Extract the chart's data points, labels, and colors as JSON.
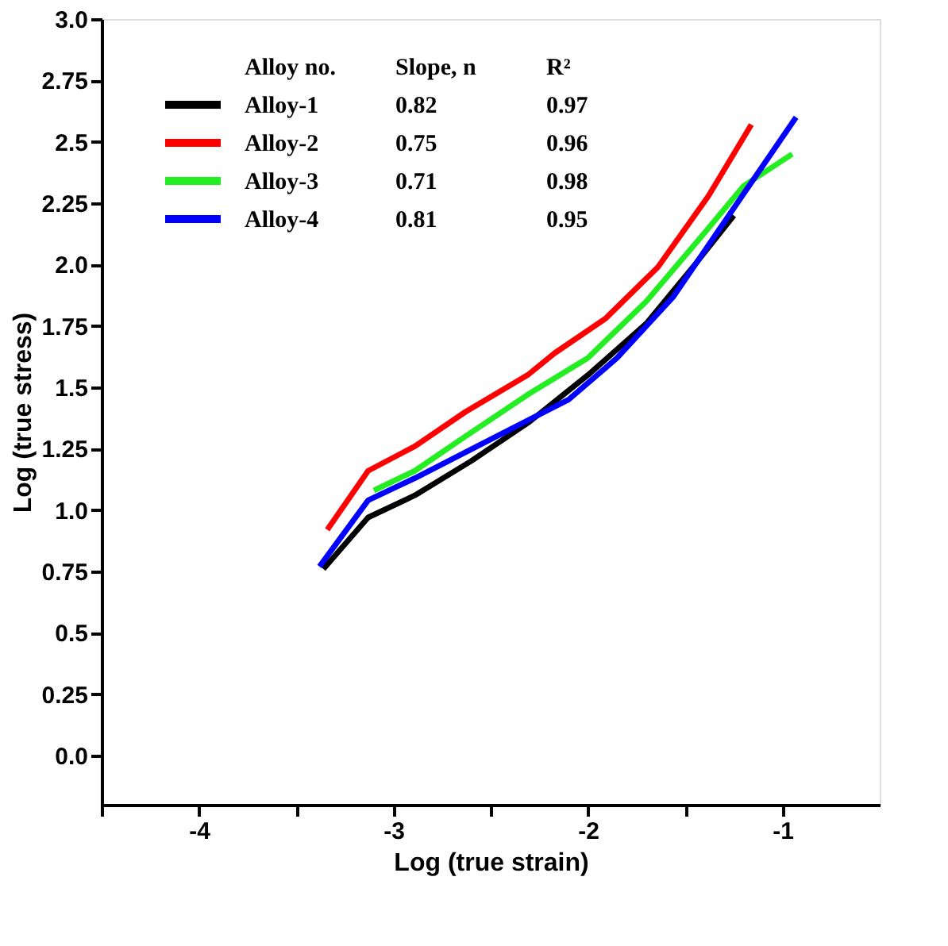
{
  "chart_data": {
    "type": "line",
    "xlabel": "Log (true strain)",
    "ylabel": "Log (true stress)",
    "legend_title": "Alloy no.",
    "xlim": [
      -4.5,
      -0.5
    ],
    "ylim": [
      -0.2,
      3.0
    ],
    "xticks": [
      {
        "value": -4.5,
        "label": null
      },
      -4,
      {
        "value": -3.5,
        "label": null
      },
      -3,
      {
        "value": -2.5,
        "label": null
      },
      -2,
      {
        "value": -1.5,
        "label": null
      },
      -1
    ],
    "yticks": [
      "0.0",
      0.25,
      "0.5",
      0.75,
      "1.0",
      1.25,
      "1.5",
      1.75,
      "2.0",
      2.25,
      "2.5",
      2.75,
      "3.0"
    ],
    "legend": "top left",
    "grid": false,
    "marker": "none",
    "line_style": "solid",
    "annotations": [
      "Slope, n",
      "0.82",
      "0.75",
      "0.71",
      "0.81",
      "R²",
      "0.97",
      "0.96",
      "0.98",
      "0.95"
    ],
    "series": [
      {
        "name": "Alloy-1",
        "color": "#000000",
        "x": [
          -3.36,
          -3.13,
          -2.89,
          -2.6,
          -2.3,
          -2.0,
          -1.7,
          -1.45,
          -1.25
        ],
        "values": [
          0.76,
          0.97,
          1.06,
          1.2,
          1.36,
          1.55,
          1.76,
          2.0,
          2.2
        ]
      },
      {
        "name": "Alloy-2",
        "color": "#ff0000",
        "x": [
          -3.34,
          -3.13,
          -2.89,
          -2.63,
          -2.31,
          -2.17,
          -1.91,
          -1.64,
          -1.38,
          -1.16
        ],
        "values": [
          0.92,
          1.16,
          1.26,
          1.4,
          1.55,
          1.64,
          1.78,
          1.99,
          2.28,
          2.57
        ]
      },
      {
        "name": "Alloy-3",
        "color": "#22ee22",
        "x": [
          -3.1,
          -2.89,
          -2.63,
          -2.31,
          -2.0,
          -1.7,
          -1.4,
          -1.2,
          -0.95
        ],
        "values": [
          1.08,
          1.16,
          1.3,
          1.47,
          1.62,
          1.85,
          2.13,
          2.32,
          2.45
        ]
      },
      {
        "name": "Alloy-4",
        "color": "#0000ff",
        "x": [
          -3.38,
          -3.13,
          -2.89,
          -2.57,
          -2.1,
          -1.85,
          -1.56,
          -1.25,
          -0.93
        ],
        "values": [
          0.77,
          1.04,
          1.13,
          1.26,
          1.45,
          1.62,
          1.87,
          2.23,
          2.6
        ]
      }
    ]
  }
}
